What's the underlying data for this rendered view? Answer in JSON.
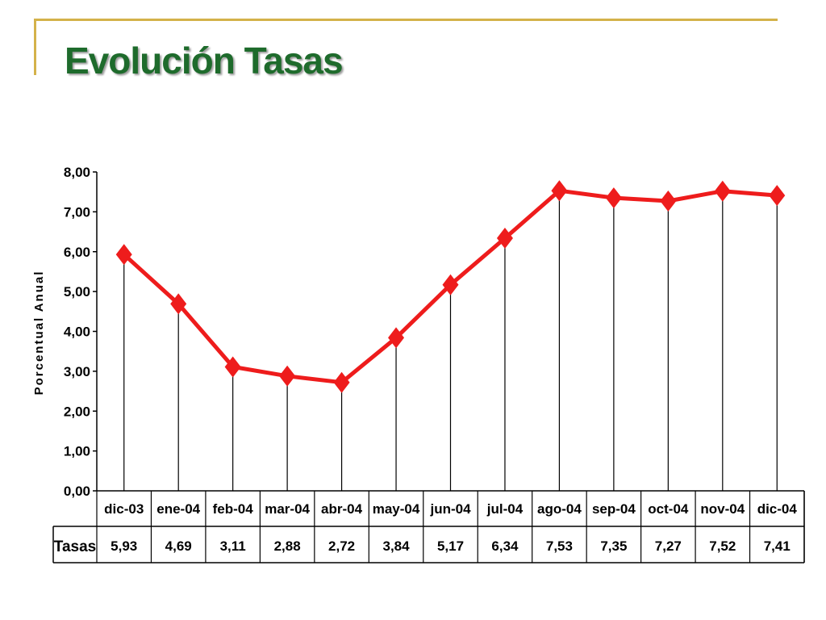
{
  "slide": {
    "title": "Evolución Tasas",
    "accent_color": "#d4b24a",
    "title_color": "#1e6b2c"
  },
  "chart_data": {
    "type": "line",
    "title": "",
    "xlabel": "",
    "ylabel": "Porcentual Anual",
    "categories": [
      "dic-03",
      "ene-04",
      "feb-04",
      "mar-04",
      "abr-04",
      "may-04",
      "jun-04",
      "jul-04",
      "ago-04",
      "sep-04",
      "oct-04",
      "nov-04",
      "dic-04"
    ],
    "series": [
      {
        "name": "Tasas",
        "values": [
          5.93,
          4.69,
          3.11,
          2.88,
          2.72,
          3.84,
          5.17,
          6.34,
          7.53,
          7.35,
          7.27,
          7.52,
          7.41
        ],
        "value_labels": [
          "5,93",
          "4,69",
          "3,11",
          "2,88",
          "2,72",
          "3,84",
          "5,17",
          "6,34",
          "7,53",
          "7,35",
          "7,27",
          "7,52",
          "7,41"
        ],
        "color": "#ee1c1c",
        "marker": "diamond"
      }
    ],
    "ylim": [
      0,
      8
    ],
    "yticks": [
      "0,00",
      "1,00",
      "2,00",
      "3,00",
      "4,00",
      "5,00",
      "6,00",
      "7,00",
      "8,00"
    ],
    "drop_lines": true,
    "grid": false,
    "data_table": true
  }
}
